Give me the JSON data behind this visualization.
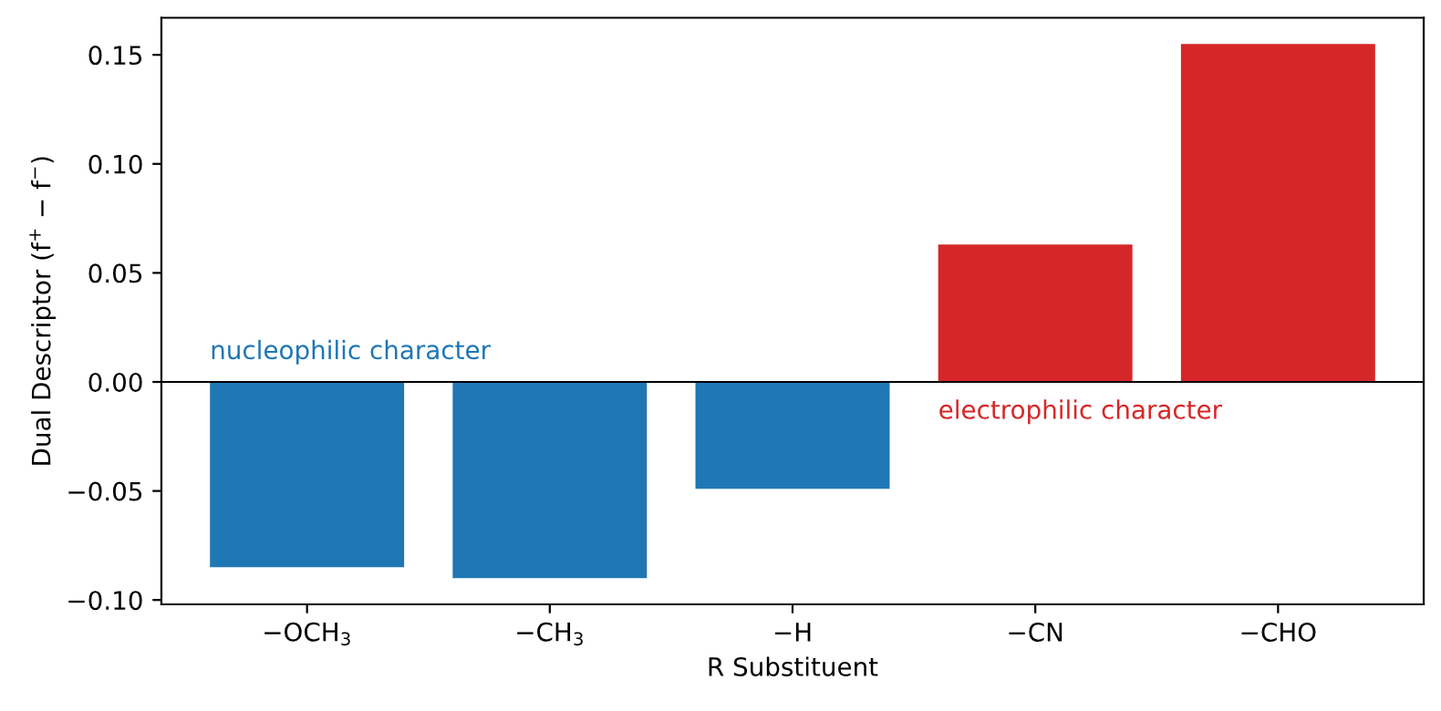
{
  "chart_data": {
    "type": "bar",
    "xlabel": "R Substituent",
    "ylabel": "Dual Descriptor (f$^{+}$ − f$^{−}$)",
    "categories": [
      "−OCH$_{3}$",
      "−CH$_{3}$",
      "−H",
      "−CN",
      "−CHO"
    ],
    "values": [
      -0.085,
      -0.09,
      -0.049,
      0.063,
      0.155
    ],
    "colors": [
      "#1f77b4",
      "#1f77b4",
      "#1f77b4",
      "#d62728",
      "#d62728"
    ],
    "ylim": [
      -0.102,
      0.167
    ],
    "yticks": [
      {
        "value": -0.1,
        "label": "−0.10"
      },
      {
        "value": -0.05,
        "label": "−0.05"
      },
      {
        "value": 0,
        "label": "0.00"
      },
      {
        "value": 0.05,
        "label": "0.05"
      },
      {
        "value": 0.1,
        "label": "0.10"
      },
      {
        "value": 0.15,
        "label": "0.15"
      }
    ],
    "ref_lines": [
      {
        "axis": "y",
        "value": 0,
        "color": "#000000"
      }
    ],
    "annotations": [
      "nucleophilic character",
      "electrophilic character"
    ],
    "grid": false
  }
}
